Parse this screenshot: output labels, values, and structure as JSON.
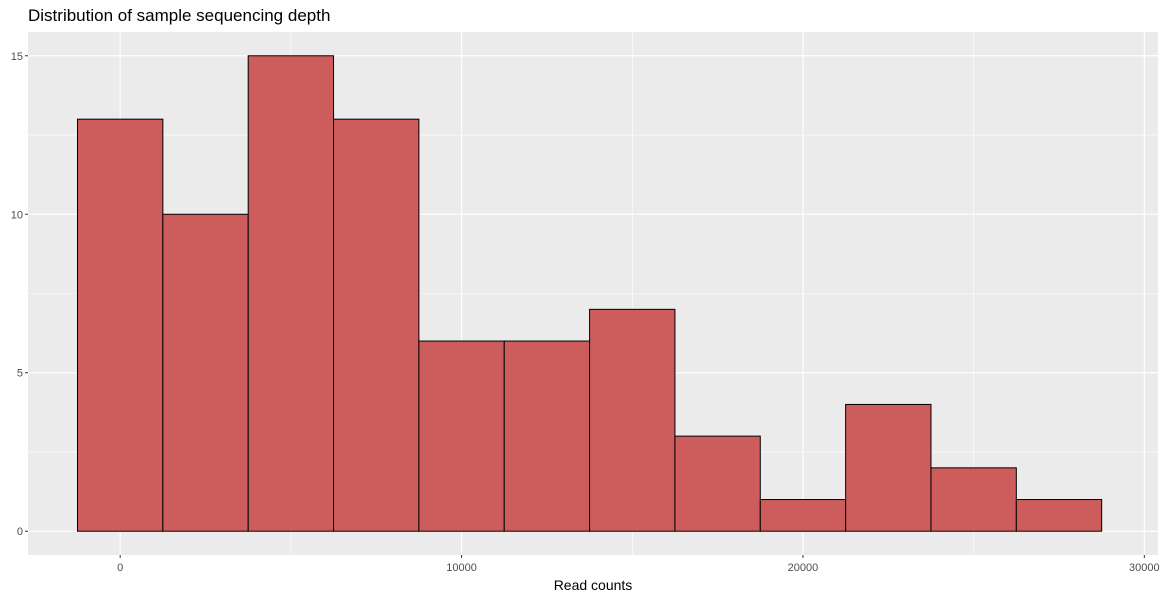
{
  "chart_data": {
    "type": "bar",
    "title": "Distribution of sample sequencing depth",
    "xlabel": "Read counts",
    "ylabel": "",
    "bin_width": 2500,
    "bins": [
      {
        "x_start": -1250,
        "x_end": 1250,
        "count": 13
      },
      {
        "x_start": 1250,
        "x_end": 3750,
        "count": 10
      },
      {
        "x_start": 3750,
        "x_end": 6250,
        "count": 15
      },
      {
        "x_start": 6250,
        "x_end": 8750,
        "count": 13
      },
      {
        "x_start": 8750,
        "x_end": 11250,
        "count": 6
      },
      {
        "x_start": 11250,
        "x_end": 13750,
        "count": 6
      },
      {
        "x_start": 13750,
        "x_end": 16250,
        "count": 7
      },
      {
        "x_start": 16250,
        "x_end": 18750,
        "count": 3
      },
      {
        "x_start": 18750,
        "x_end": 21250,
        "count": 1
      },
      {
        "x_start": 21250,
        "x_end": 23750,
        "count": 4
      },
      {
        "x_start": 23750,
        "x_end": 26250,
        "count": 2
      },
      {
        "x_start": 26250,
        "x_end": 28750,
        "count": 1
      }
    ],
    "xlim": [
      -2700,
      30400
    ],
    "ylim": [
      -0.75,
      15.75
    ],
    "x_ticks": [
      0,
      10000,
      20000,
      30000
    ],
    "x_tick_labels": [
      "0",
      "10000",
      "20000",
      "30000"
    ],
    "y_ticks": [
      0,
      5,
      10,
      15
    ],
    "y_tick_labels": [
      "0",
      "5",
      "10",
      "15"
    ],
    "bar_fill": "#cd5c5c",
    "bar_stroke": "#000000",
    "panel_background": "#ebebeb",
    "grid": true,
    "grid_color": "#ffffff",
    "legend": "none"
  }
}
